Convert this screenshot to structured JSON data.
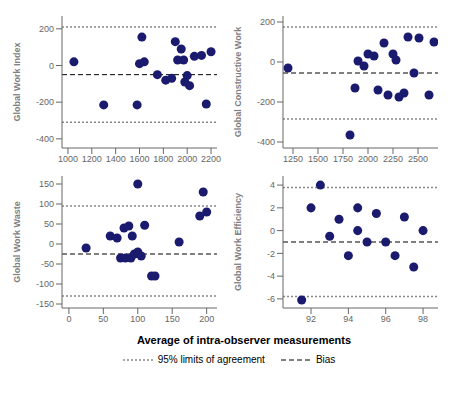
{
  "chart_data": [
    {
      "type": "scatter",
      "ylabel": "Global Work Index",
      "xlim": [
        950,
        2250
      ],
      "ylim": [
        -450,
        270
      ],
      "xticks": [
        1000,
        1200,
        1400,
        1600,
        1800,
        2000,
        2200
      ],
      "yticks": [
        -400,
        -200,
        0,
        200
      ],
      "color": "#1a1a6e",
      "bias": -50,
      "loa_upper": 210,
      "loa_lower": -310,
      "x": [
        1050,
        1300,
        1580,
        1600,
        1620,
        1640,
        1750,
        1820,
        1870,
        1900,
        1920,
        1950,
        1970,
        1980,
        2000,
        2020,
        2060,
        2120,
        2160,
        2200
      ],
      "values": [
        20,
        -215,
        -215,
        10,
        155,
        20,
        -50,
        -80,
        -70,
        130,
        30,
        90,
        30,
        -90,
        -55,
        -110,
        50,
        55,
        -210,
        75
      ]
    },
    {
      "type": "scatter",
      "ylabel": "Global Constructive Work",
      "xlim": [
        1150,
        2700
      ],
      "ylim": [
        -430,
        230
      ],
      "xticks": [
        1250,
        1500,
        1750,
        2000,
        2250,
        2500
      ],
      "yticks": [
        -400,
        -200,
        0,
        200
      ],
      "color": "#1a1a6e",
      "bias": -55,
      "loa_upper": 175,
      "loa_lower": -285,
      "x": [
        1200,
        1820,
        1870,
        1900,
        1960,
        2000,
        2060,
        2100,
        2160,
        2200,
        2250,
        2280,
        2310,
        2360,
        2400,
        2460,
        2510,
        2610,
        2660
      ],
      "values": [
        -30,
        -365,
        -130,
        5,
        -20,
        40,
        30,
        -140,
        95,
        -165,
        40,
        10,
        -175,
        -155,
        125,
        -55,
        120,
        -165,
        100
      ]
    },
    {
      "type": "scatter",
      "ylabel": "Global Work Waste",
      "xlim": [
        -10,
        215
      ],
      "ylim": [
        -160,
        170
      ],
      "xticks": [
        0,
        50,
        100,
        150,
        200
      ],
      "yticks": [
        -150,
        -100,
        -50,
        0,
        50,
        100,
        150
      ],
      "color": "#1a1a6e",
      "bias": -25,
      "loa_upper": 95,
      "loa_lower": -130,
      "x": [
        25,
        60,
        70,
        75,
        80,
        82,
        87,
        90,
        92,
        95,
        100,
        100,
        105,
        110,
        120,
        125,
        160,
        190,
        195,
        200
      ],
      "values": [
        -10,
        20,
        15,
        -35,
        40,
        -35,
        45,
        -35,
        20,
        -25,
        150,
        -20,
        -30,
        47,
        -80,
        -80,
        5,
        70,
        130,
        80
      ]
    },
    {
      "type": "scatter",
      "ylabel": "Global Work Efficiency",
      "xlim": [
        90.5,
        98.8
      ],
      "ylim": [
        -6.8,
        4.8
      ],
      "xticks": [
        92,
        94,
        96,
        98
      ],
      "yticks": [
        -6,
        -4,
        -2,
        0,
        2,
        4
      ],
      "color": "#1a1a6e",
      "bias": -1.0,
      "loa_upper": 3.8,
      "loa_lower": -5.8,
      "x": [
        91.5,
        92.0,
        92.5,
        93.0,
        93.5,
        94.0,
        94.5,
        94.5,
        95.0,
        95.5,
        96.0,
        96.5,
        97.0,
        97.5,
        98.0
      ],
      "values": [
        -6.1,
        2.0,
        4.0,
        -0.5,
        1.0,
        -2.2,
        0.0,
        2.0,
        -1.0,
        1.5,
        -1.0,
        -2.2,
        1.2,
        -3.2,
        0.0
      ]
    }
  ],
  "xlabel": "Average of intra-observer measurements",
  "legend_entries": [
    {
      "name": "95% limits of agreement",
      "color": "#888888",
      "line_style": "dotted"
    },
    {
      "name": "Bias",
      "color": "black",
      "line_style": "dashed"
    }
  ]
}
